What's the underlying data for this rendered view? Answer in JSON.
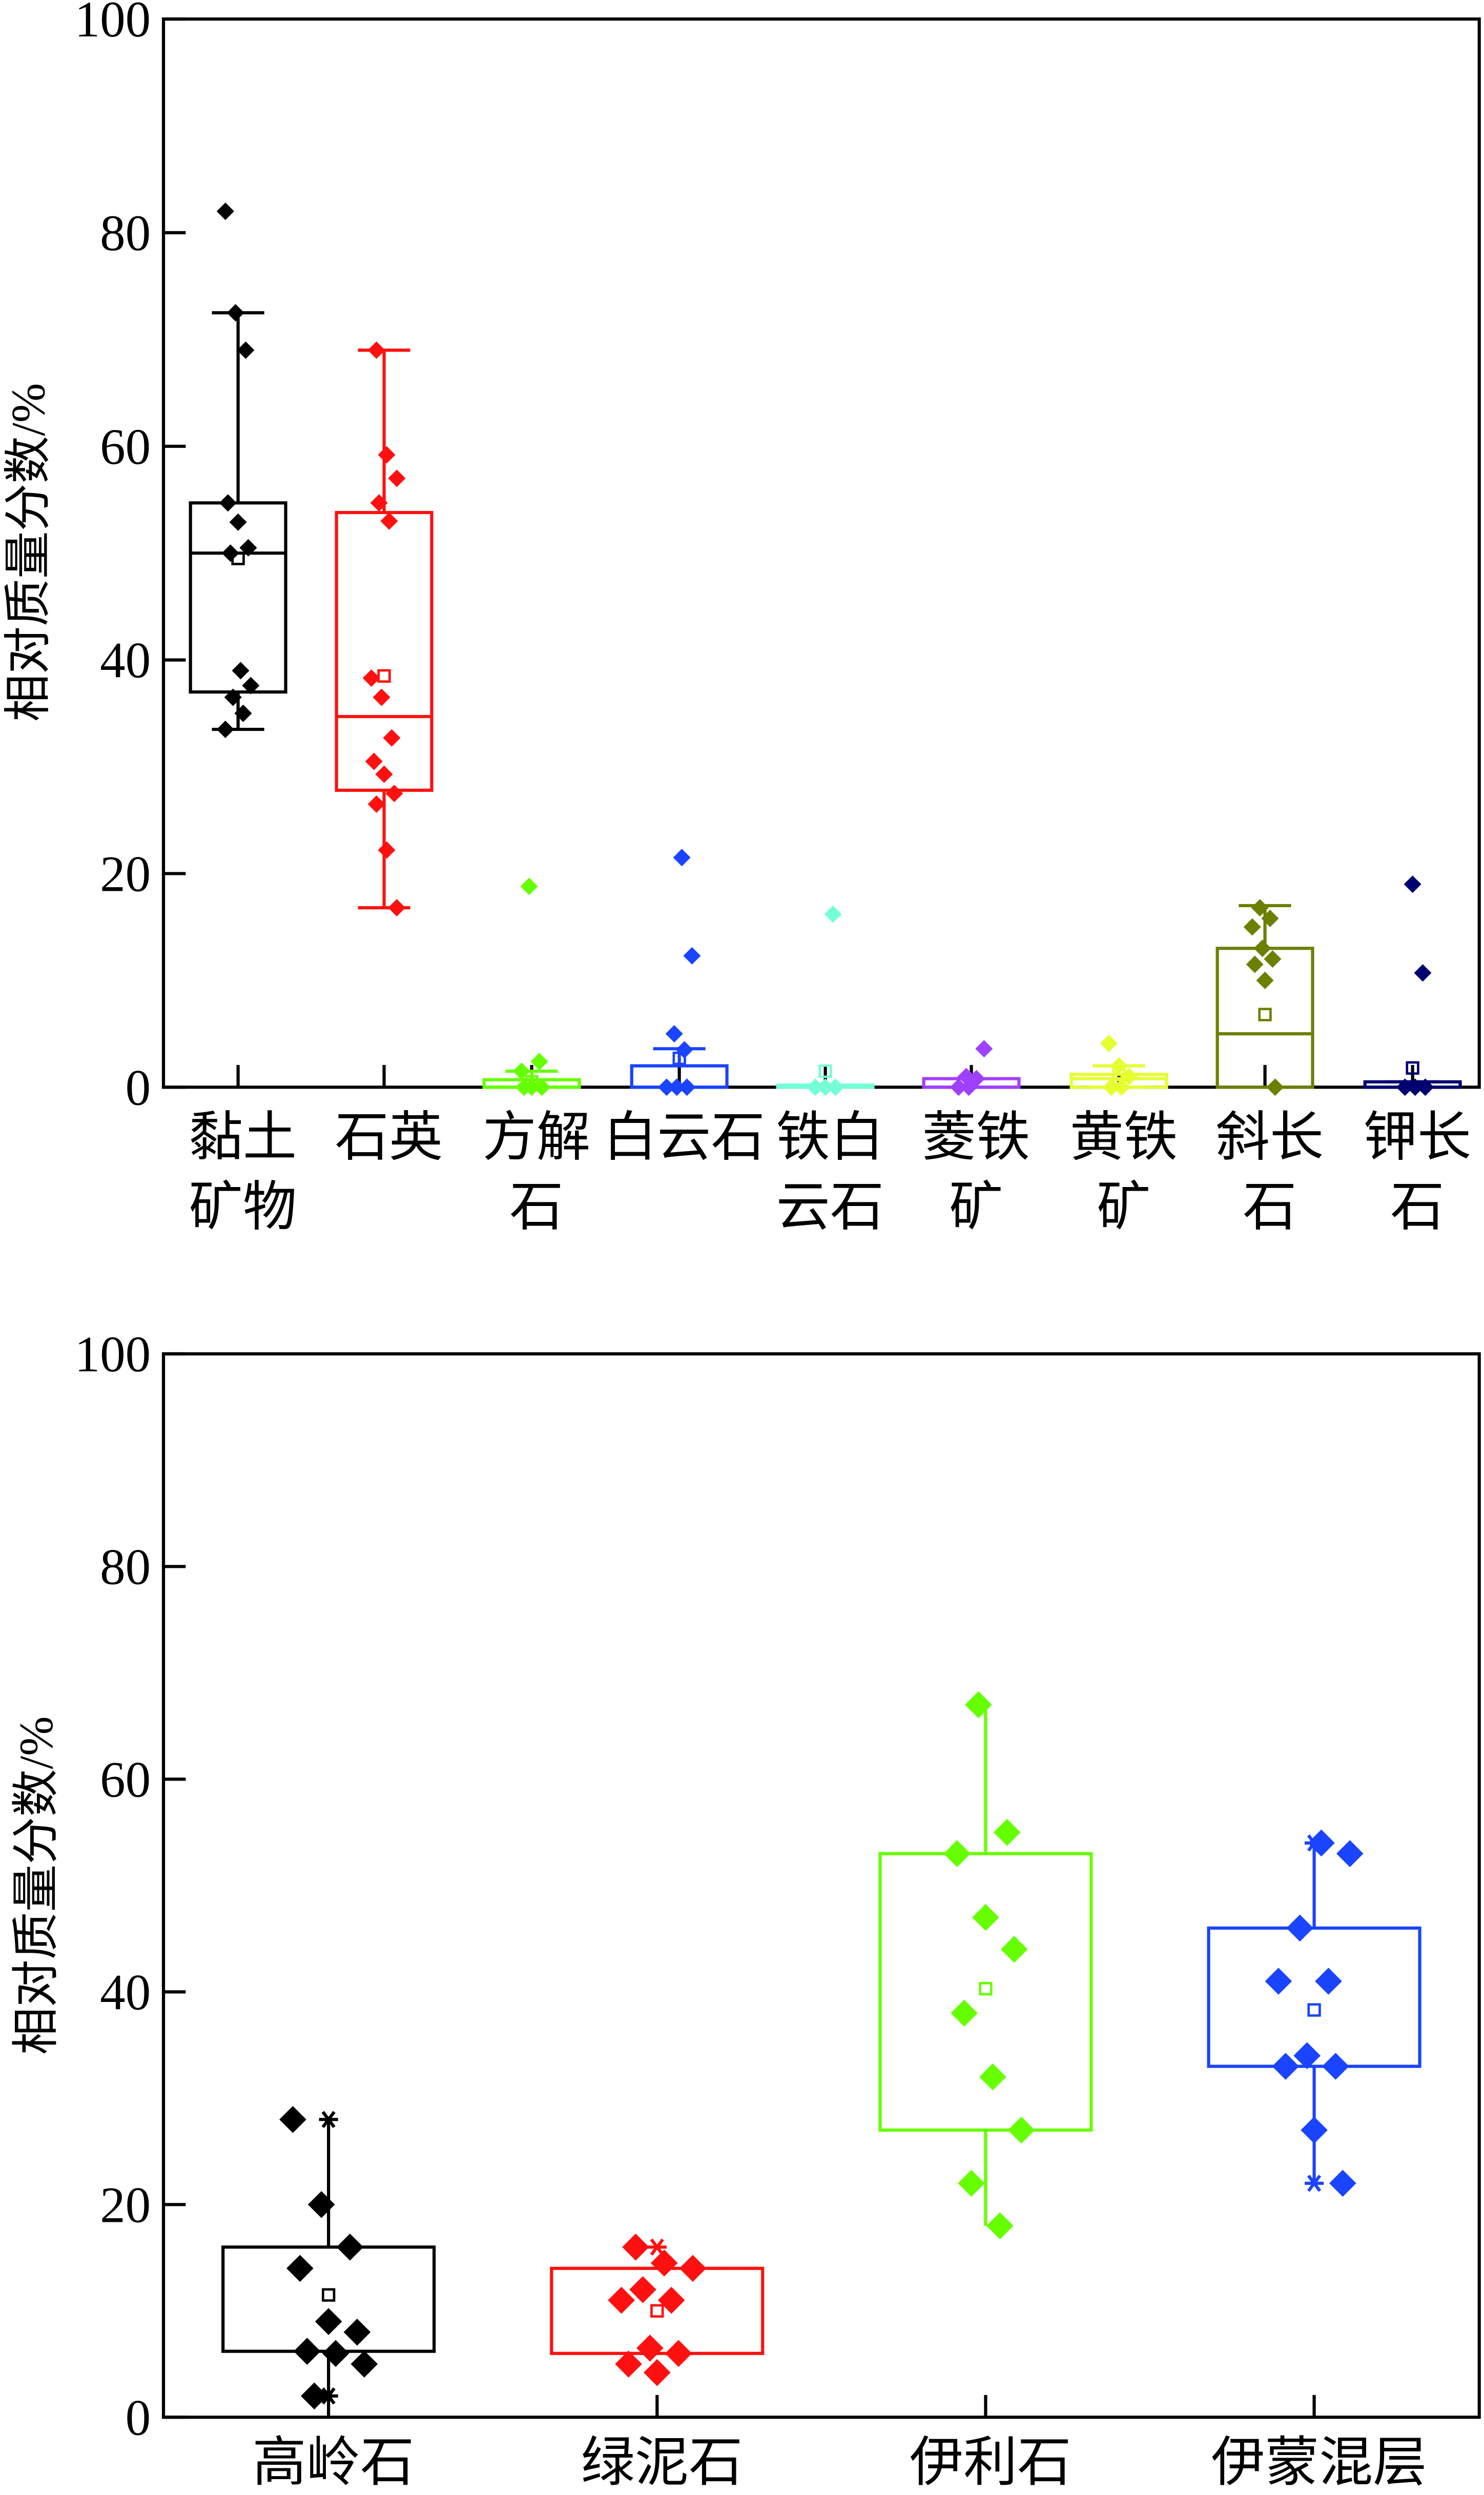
{
  "chart_data": [
    {
      "type": "box",
      "ylabel": "相对质量分数/%",
      "ylim": [
        0,
        100
      ],
      "yticks": [
        0,
        20,
        40,
        60,
        80,
        100
      ],
      "categories": [
        {
          "label": [
            "黏土",
            "矿物"
          ],
          "color": "#000000",
          "box": [
            37,
            50,
            54.7
          ],
          "whisker": [
            33.5,
            72.5
          ],
          "mean": 49.5,
          "points": [
            82,
            72.5,
            69,
            54.7,
            52.9,
            50.5,
            50,
            39,
            37.6,
            36.5,
            35,
            33.5
          ]
        },
        {
          "label": [
            "石英",
            ""
          ],
          "color": "#ff1010",
          "box": [
            27.8,
            34.7,
            53.8
          ],
          "whisker": [
            16.8,
            69
          ],
          "mean": 38.5,
          "points": [
            69,
            59.2,
            57,
            54.7,
            53,
            38.3,
            36.5,
            32.7,
            30.5,
            29.3,
            27.5,
            26.5,
            22.2,
            16.8
          ]
        },
        {
          "label": [
            "方解",
            "石"
          ],
          "color": "#66ff00",
          "box": [
            0,
            0,
            0.7
          ],
          "whisker": [
            0,
            1.5
          ],
          "mean": 0.5,
          "points": [
            18.8,
            2.4,
            1.5,
            0,
            0,
            0
          ]
        },
        {
          "label": [
            "白云石",
            ""
          ],
          "color": "#1a44ff",
          "box": [
            0,
            0,
            2
          ],
          "whisker": [
            0,
            3.6
          ],
          "mean": 2.7,
          "points": [
            21.5,
            12.3,
            5,
            3.5,
            0,
            0,
            0
          ]
        },
        {
          "label": [
            "铁白",
            "云石"
          ],
          "color": "#74ffd6",
          "box": [
            0,
            0,
            0.2
          ],
          "whisker": [
            0,
            0.2
          ],
          "mean": 1.5,
          "points": [
            16.2,
            0,
            0,
            0
          ]
        },
        {
          "label": [
            "菱铁",
            "矿"
          ],
          "color": "#a040ff",
          "box": [
            0,
            0,
            0.8
          ],
          "whisker": [
            0,
            0.8
          ],
          "mean": 0.5,
          "points": [
            3.6,
            1,
            0.8,
            0,
            0
          ]
        },
        {
          "label": [
            "黄铁",
            "矿"
          ],
          "color": "#e6ff30",
          "box": [
            0,
            0.8,
            1.2
          ],
          "whisker": [
            0,
            2
          ],
          "mean": 1.2,
          "points": [
            4.1,
            2,
            1,
            0,
            0
          ]
        },
        {
          "label": [
            "斜长",
            "石"
          ],
          "color": "#6b8000",
          "box": [
            0,
            5,
            13
          ],
          "whisker": [
            0,
            17
          ],
          "mean": 6.8,
          "points": [
            16.8,
            15.8,
            15,
            13,
            12,
            11.5,
            10,
            0
          ]
        },
        {
          "label": [
            "钾长",
            "石"
          ],
          "color": "#000070",
          "box": [
            0,
            0,
            0.5
          ],
          "whisker": [
            0,
            0.5
          ],
          "mean": 1.8,
          "points": [
            19,
            10.7,
            0,
            0,
            0
          ]
        }
      ]
    },
    {
      "type": "box",
      "ylabel": "相对质量分数/%",
      "ylim": [
        0,
        100
      ],
      "yticks": [
        0,
        20,
        40,
        60,
        80,
        100
      ],
      "categories": [
        {
          "label": [
            "高岭石"
          ],
          "color": "#000000",
          "box": [
            6.2,
            16
          ],
          "whisker": [
            2,
            28
          ],
          "mean": 11.5,
          "stars": [
            28,
            2
          ],
          "points": [
            28,
            20,
            16,
            14,
            9,
            8,
            6.2,
            6,
            5,
            2
          ]
        },
        {
          "label": [
            "绿泥石"
          ],
          "color": "#ff1010",
          "box": [
            6,
            14
          ],
          "whisker": [
            6,
            14
          ],
          "mean": 10,
          "stars": [
            16,
            4.2
          ],
          "points": [
            16,
            14.5,
            14,
            12,
            11,
            11,
            6.5,
            6,
            5,
            4.2
          ]
        },
        {
          "label": [
            "伊利石"
          ],
          "color": "#66ff00",
          "box": [
            27,
            53
          ],
          "whisker": [
            18,
            67
          ],
          "mean": 40.3,
          "stars": [],
          "points": [
            67,
            55,
            53,
            47,
            44,
            38,
            32,
            27,
            22,
            18
          ]
        },
        {
          "label": [
            "伊蒙混层"
          ],
          "color": "#1a44ff",
          "box": [
            33,
            46
          ],
          "whisker": [
            22,
            54
          ],
          "mean": 38.3,
          "stars": [
            54,
            22
          ],
          "points": [
            54,
            53,
            46,
            41,
            41,
            34,
            33,
            33,
            27,
            22
          ]
        }
      ]
    }
  ]
}
